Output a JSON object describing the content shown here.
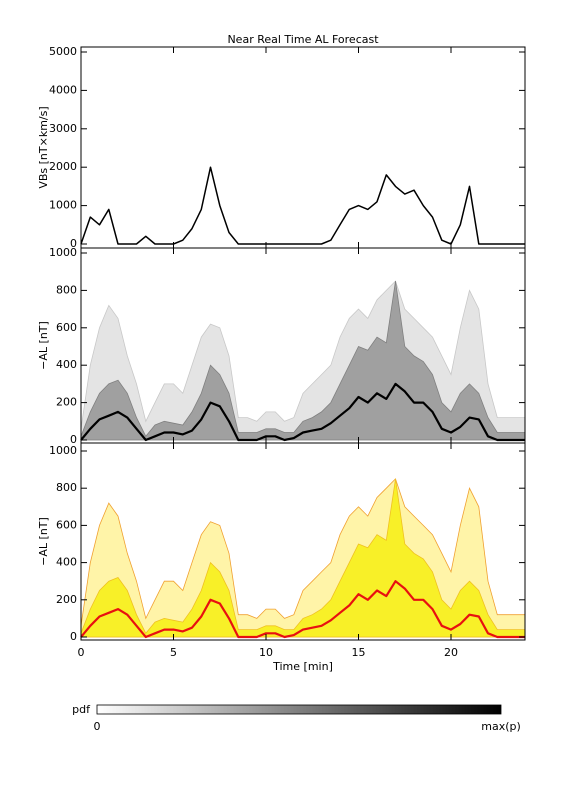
{
  "title": "Near Real Time AL Forecast",
  "chart_data": [
    {
      "type": "line",
      "y_label": "VBs [nT×km/s]",
      "x": [
        0,
        0.5,
        1,
        1.5,
        2,
        2.5,
        3,
        3.5,
        4,
        4.5,
        5,
        5.5,
        6,
        6.5,
        7,
        7.5,
        8,
        8.5,
        9,
        9.5,
        10,
        10.5,
        11,
        11.5,
        12,
        12.5,
        13,
        13.5,
        14,
        14.5,
        15,
        15.5,
        16,
        16.5,
        17,
        17.5,
        18,
        18.5,
        19,
        19.5,
        20,
        20.5,
        21,
        21.5,
        22,
        22.5,
        23,
        23.5,
        24
      ],
      "series": [
        {
          "color": "#000000",
          "style": "line",
          "values": [
            0,
            700,
            500,
            900,
            0,
            0,
            0,
            200,
            0,
            0,
            0,
            100,
            400,
            900,
            2000,
            1000,
            300,
            0,
            0,
            0,
            0,
            0,
            0,
            0,
            0,
            0,
            0,
            100,
            500,
            900,
            1000,
            900,
            1100,
            1800,
            1500,
            1300,
            1400,
            1000,
            700,
            100,
            0,
            500,
            1500,
            0,
            0,
            0,
            0,
            0,
            0
          ]
        }
      ],
      "xlim": [
        0,
        24
      ],
      "ylim": [
        0,
        5000
      ],
      "yticks": [
        0,
        1000,
        2000,
        3000,
        4000,
        5000
      ]
    },
    {
      "type": "density",
      "y_label": "−AL [nT]",
      "x": [
        0,
        0.5,
        1,
        1.5,
        2,
        2.5,
        3,
        3.5,
        4,
        4.5,
        5,
        5.5,
        6,
        6.5,
        7,
        7.5,
        8,
        8.5,
        9,
        9.5,
        10,
        10.5,
        11,
        11.5,
        12,
        12.5,
        13,
        13.5,
        14,
        14.5,
        15,
        15.5,
        16,
        16.5,
        17,
        17.5,
        18,
        18.5,
        19,
        19.5,
        20,
        20.5,
        21,
        21.5,
        22,
        22.5,
        23,
        23.5,
        24
      ],
      "series": [
        {
          "color": "#e4e4e4",
          "edge": "#c8c8c8",
          "style": "area",
          "values": [
            60,
            400,
            600,
            720,
            650,
            450,
            300,
            100,
            200,
            300,
            300,
            250,
            400,
            550,
            620,
            600,
            450,
            120,
            120,
            100,
            150,
            150,
            100,
            120,
            250,
            300,
            350,
            400,
            550,
            650,
            700,
            650,
            750,
            800,
            850,
            700,
            650,
            600,
            550,
            450,
            350,
            600,
            800,
            700,
            300,
            120,
            120,
            120,
            120
          ]
        },
        {
          "color": "#a0a0a0",
          "edge": "#808080",
          "style": "area",
          "values": [
            20,
            150,
            250,
            300,
            320,
            250,
            120,
            20,
            80,
            100,
            90,
            80,
            150,
            250,
            400,
            350,
            250,
            40,
            40,
            40,
            60,
            60,
            40,
            40,
            100,
            120,
            150,
            200,
            300,
            400,
            500,
            480,
            550,
            520,
            850,
            500,
            450,
            420,
            350,
            200,
            150,
            250,
            300,
            250,
            120,
            40,
            40,
            40,
            40
          ]
        },
        {
          "color": "#000000",
          "style": "line",
          "values": [
            0,
            60,
            110,
            130,
            150,
            120,
            60,
            0,
            20,
            40,
            40,
            30,
            50,
            110,
            200,
            180,
            100,
            0,
            0,
            0,
            20,
            20,
            0,
            10,
            40,
            50,
            60,
            90,
            130,
            170,
            230,
            200,
            250,
            220,
            300,
            260,
            200,
            200,
            150,
            60,
            40,
            70,
            120,
            110,
            20,
            0,
            0,
            0,
            0
          ]
        }
      ],
      "xlim": [
        0,
        24
      ],
      "ylim": [
        0,
        1000
      ],
      "yticks": [
        0,
        200,
        400,
        600,
        800,
        1000
      ]
    },
    {
      "type": "density",
      "y_label": "−AL [nT]",
      "x_label": "Time [min]",
      "x": [
        0,
        0.5,
        1,
        1.5,
        2,
        2.5,
        3,
        3.5,
        4,
        4.5,
        5,
        5.5,
        6,
        6.5,
        7,
        7.5,
        8,
        8.5,
        9,
        9.5,
        10,
        10.5,
        11,
        11.5,
        12,
        12.5,
        13,
        13.5,
        14,
        14.5,
        15,
        15.5,
        16,
        16.5,
        17,
        17.5,
        18,
        18.5,
        19,
        19.5,
        20,
        20.5,
        21,
        21.5,
        22,
        22.5,
        23,
        23.5,
        24
      ],
      "series": [
        {
          "color": "#fff4a8",
          "edge": "#f0a030",
          "style": "area",
          "values": [
            60,
            400,
            600,
            720,
            650,
            450,
            300,
            100,
            200,
            300,
            300,
            250,
            400,
            550,
            620,
            600,
            450,
            120,
            120,
            100,
            150,
            150,
            100,
            120,
            250,
            300,
            350,
            400,
            550,
            650,
            700,
            650,
            750,
            800,
            850,
            700,
            650,
            600,
            550,
            450,
            350,
            600,
            800,
            700,
            300,
            120,
            120,
            120,
            120
          ]
        },
        {
          "color": "#f8f028",
          "edge": "#f0c020",
          "style": "area",
          "values": [
            20,
            150,
            250,
            300,
            320,
            250,
            120,
            20,
            80,
            100,
            90,
            80,
            150,
            250,
            400,
            350,
            250,
            40,
            40,
            40,
            60,
            60,
            40,
            40,
            100,
            120,
            150,
            200,
            300,
            400,
            500,
            480,
            550,
            520,
            850,
            500,
            450,
            420,
            350,
            200,
            150,
            250,
            300,
            250,
            120,
            40,
            40,
            40,
            40
          ]
        },
        {
          "color": "#e81010",
          "style": "line",
          "values": [
            0,
            60,
            110,
            130,
            150,
            120,
            60,
            0,
            20,
            40,
            40,
            30,
            50,
            110,
            200,
            180,
            100,
            0,
            0,
            0,
            20,
            20,
            0,
            10,
            40,
            50,
            60,
            90,
            130,
            170,
            230,
            200,
            250,
            220,
            300,
            260,
            200,
            200,
            150,
            60,
            40,
            70,
            120,
            110,
            20,
            0,
            0,
            0,
            0
          ]
        }
      ],
      "xlim": [
        0,
        24
      ],
      "xticks": [
        0,
        5,
        10,
        15,
        20
      ],
      "ylim": [
        0,
        1000
      ],
      "yticks": [
        0,
        200,
        400,
        600,
        800,
        1000
      ]
    }
  ],
  "colorbar": {
    "label": "pdf",
    "min_label": "0",
    "max_label": "max(p)"
  }
}
